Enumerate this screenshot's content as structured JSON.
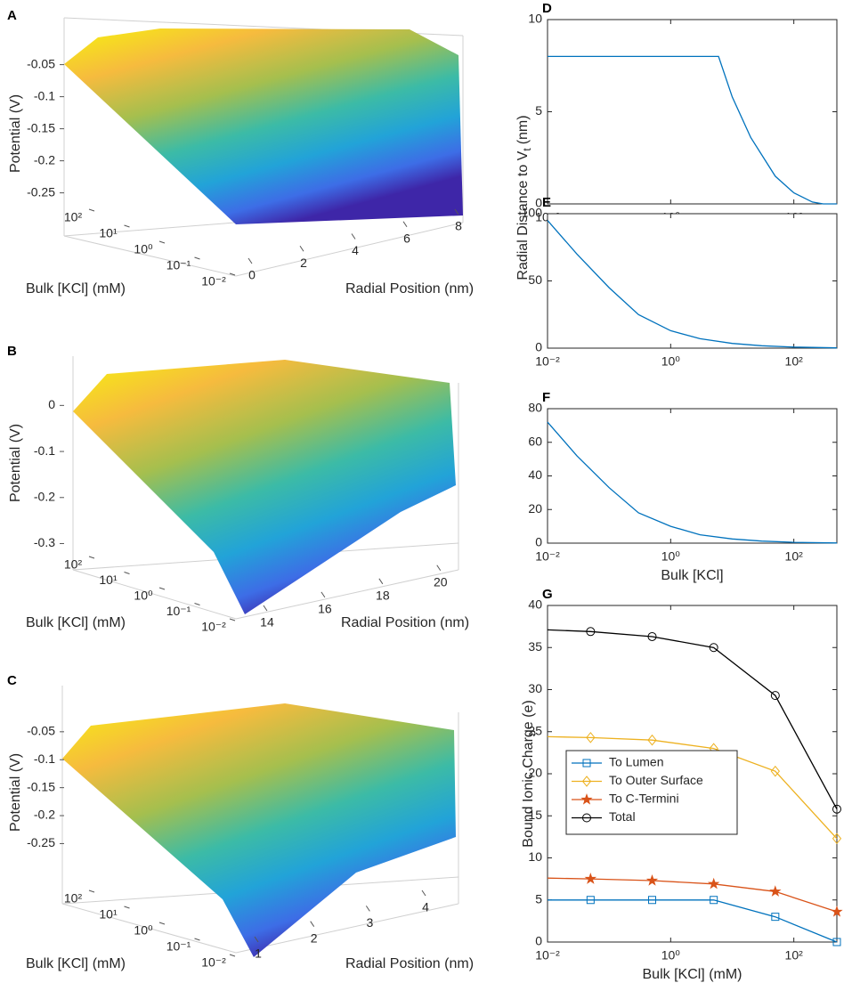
{
  "chart_data": [
    {
      "type": "surface3d",
      "panel": "A",
      "zlabel": "Potential (V)",
      "ylabel": "Bulk [KCl] (mM)",
      "xlabel": "Radial Position (nm)",
      "xlim": [
        0,
        8
      ],
      "xticks": [
        0,
        2,
        4,
        6,
        8
      ],
      "ylim": [
        0.01,
        500
      ],
      "log_y": true,
      "yticks": [
        {
          "value": 100,
          "label": "10²"
        },
        {
          "value": 10,
          "label": "10¹"
        },
        {
          "value": 1,
          "label": "10⁰"
        },
        {
          "value": 0.1,
          "label": "10⁻¹"
        },
        {
          "value": 0.01,
          "label": "10⁻²"
        }
      ],
      "zlim": [
        -0.27,
        -0.02
      ],
      "zticks": [
        -0.05,
        -0.1,
        -0.15,
        -0.2,
        -0.25
      ]
    },
    {
      "type": "surface3d",
      "panel": "B",
      "zlabel": "Potential  (V)",
      "ylabel": "Bulk [KCl] (mM)",
      "xlabel": "Radial Position (nm)",
      "xlim": [
        13,
        20.5
      ],
      "xticks": [
        14,
        16,
        18,
        20
      ],
      "ylim": [
        0.01,
        500
      ],
      "log_y": true,
      "yticks": [
        {
          "value": 100,
          "label": "10²"
        },
        {
          "value": 10,
          "label": "10¹"
        },
        {
          "value": 1,
          "label": "10⁰"
        },
        {
          "value": 0.1,
          "label": "10⁻¹"
        },
        {
          "value": 0.01,
          "label": "10⁻²"
        }
      ],
      "zlim": [
        -0.33,
        0.02
      ],
      "zticks": [
        0,
        -0.1,
        -0.2,
        -0.3
      ]
    },
    {
      "type": "surface3d",
      "panel": "C",
      "zlabel": "Potential (V)",
      "ylabel": "Bulk [KCl] (mM)",
      "xlabel": "Radial Position (nm)",
      "xlim": [
        0.8,
        4
      ],
      "xticks": [
        1,
        2,
        3,
        4
      ],
      "ylim": [
        0.01,
        500
      ],
      "log_y": true,
      "yticks": [
        {
          "value": 100,
          "label": "10²"
        },
        {
          "value": 10,
          "label": "10¹"
        },
        {
          "value": 1,
          "label": "10⁰"
        },
        {
          "value": 0.1,
          "label": "10⁻¹"
        },
        {
          "value": 0.01,
          "label": "10⁻²"
        }
      ],
      "zlim": [
        -0.27,
        -0.02
      ],
      "zticks": [
        -0.05,
        -0.1,
        -0.15,
        -0.2,
        -0.25
      ]
    },
    {
      "type": "line",
      "panel": "D",
      "log_x": true,
      "color": "#0072bd",
      "x": [
        0.01,
        0.1,
        1,
        6,
        10,
        20,
        50,
        100,
        200,
        300,
        500
      ],
      "values": [
        8,
        8,
        8,
        8,
        5.8,
        3.6,
        1.5,
        0.6,
        0.1,
        0,
        0
      ],
      "xlim": [
        0.01,
        500
      ],
      "xticks": [
        {
          "value": 0.01,
          "label": "10⁻²"
        },
        {
          "value": 1,
          "label": "10⁰"
        },
        {
          "value": 100,
          "label": "10²"
        }
      ],
      "ylim": [
        0,
        10
      ],
      "yticks": [
        0,
        5,
        10
      ]
    },
    {
      "type": "line",
      "panel": "E",
      "log_x": true,
      "color": "#0072bd",
      "ylabel": "Radial Distance to V",
      "ylabel_subscript": "t",
      "ylabel_suffix": "(nm)",
      "x": [
        0.01,
        0.03,
        0.1,
        0.3,
        1,
        3,
        10,
        30,
        100,
        500
      ],
      "values": [
        95,
        70,
        45,
        25,
        13,
        7,
        3.5,
        1.8,
        0.8,
        0.2
      ],
      "xlim": [
        0.01,
        500
      ],
      "xticks": [
        {
          "value": 0.01,
          "label": "10⁻²"
        },
        {
          "value": 1,
          "label": "10⁰"
        },
        {
          "value": 100,
          "label": "10²"
        }
      ],
      "ylim": [
        0,
        100
      ],
      "yticks": [
        0,
        50,
        100
      ]
    },
    {
      "type": "line",
      "panel": "F",
      "log_x": true,
      "color": "#0072bd",
      "xlabel": "Bulk [KCl]",
      "x": [
        0.01,
        0.03,
        0.1,
        0.3,
        1,
        3,
        10,
        30,
        100,
        500
      ],
      "values": [
        72,
        52,
        33,
        18,
        10,
        5,
        2.5,
        1.2,
        0.5,
        0.1
      ],
      "xlim": [
        0.01,
        500
      ],
      "xticks": [
        {
          "value": 0.01,
          "label": "10⁻²"
        },
        {
          "value": 1,
          "label": "10⁰"
        },
        {
          "value": 100,
          "label": "10²"
        }
      ],
      "ylim": [
        0,
        80
      ],
      "yticks": [
        0,
        20,
        40,
        60,
        80
      ]
    },
    {
      "type": "line",
      "panel": "G",
      "log_x": true,
      "xlabel": "Bulk [KCl] (mM)",
      "ylabel": "Bound Ionic Charge (e)",
      "legend": "lower left",
      "x": [
        0.01,
        0.05,
        0.5,
        5,
        50,
        500
      ],
      "series": [
        {
          "name": "To Lumen",
          "color": "#0072bd",
          "marker": "square",
          "values": [
            5,
            5,
            5,
            5,
            3,
            0
          ]
        },
        {
          "name": "To Outer Surface",
          "color": "#edb120",
          "marker": "diamond",
          "values": [
            24.4,
            24.3,
            24,
            23,
            20.3,
            12.3
          ]
        },
        {
          "name": "To C-Termini",
          "color": "#d95319",
          "marker": "star",
          "values": [
            7.6,
            7.5,
            7.3,
            6.9,
            6,
            3.6
          ]
        },
        {
          "name": "Total",
          "color": "#000000",
          "marker": "circle",
          "values": [
            37.1,
            36.9,
            36.3,
            35,
            29.3,
            15.8
          ]
        }
      ],
      "xlim": [
        0.01,
        500
      ],
      "xticks": [
        {
          "value": 0.01,
          "label": "10⁻²"
        },
        {
          "value": 1,
          "label": "10⁰"
        },
        {
          "value": 100,
          "label": "10²"
        }
      ],
      "ylim": [
        0,
        40
      ],
      "yticks": [
        0,
        5,
        10,
        15,
        20,
        25,
        30,
        35,
        40
      ]
    }
  ]
}
